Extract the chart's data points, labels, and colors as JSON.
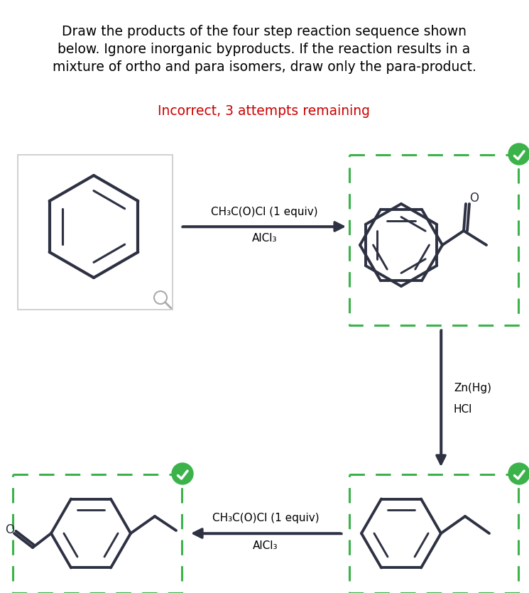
{
  "title_line1": "Draw the products of the four step reaction sequence shown",
  "title_line2": "below. Ignore inorganic byproducts. If the reaction results in a",
  "title_line3": "mixture of ortho and para isomers, draw only the para-product.",
  "status_text": "Incorrect, 3 attempts remaining",
  "status_color": "#cc0000",
  "reagent1_top": "CH₃C(O)Cl (1 equiv)",
  "reagent1_bot": "AlCl₃",
  "reagent2_right1": "Zn(Hg)",
  "reagent2_right2": "HCl",
  "reagent3_top": "CH₃C(O)Cl (1 equiv)",
  "reagent3_bot": "AlCl₃",
  "bg_color": "#ffffff",
  "box_color": "#3cb34a",
  "molecule_color": "#2d3142",
  "check_color": "#3cb34a"
}
